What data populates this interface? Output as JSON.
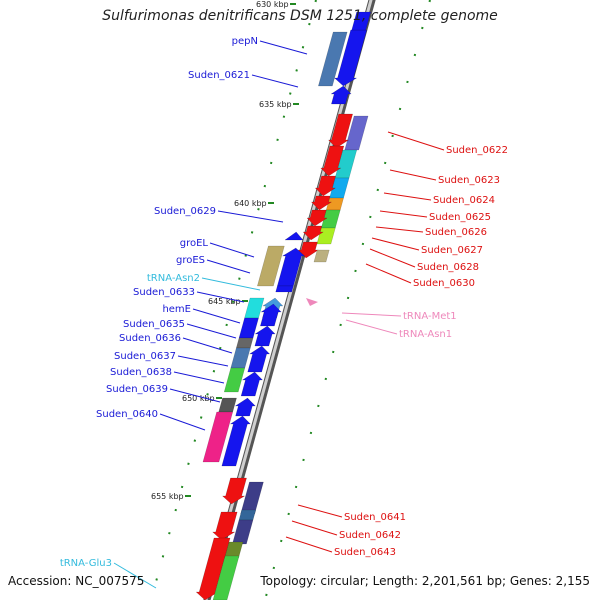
{
  "title": "Sulfurimonas denitrificans DSM 1251, complete genome",
  "accession": "Accession: NC_007575",
  "summary": "Topology: circular; Length: 2,201,561 bp; Genes: 2,155",
  "ticks": [
    "630 kbp",
    "635 kbp",
    "640 kbp",
    "645 kbp",
    "650 kbp",
    "655 kbp"
  ],
  "colors": {
    "label_blue": "#1a1ad6",
    "label_red": "#dd1111",
    "label_cyan": "#33bbdd",
    "label_pink": "#ee88bb",
    "backbone": "#888888",
    "tick_green": "#228822"
  },
  "labels_left": [
    {
      "text": "pepN",
      "color": "label_blue"
    },
    {
      "text": "Suden_0621",
      "color": "label_blue"
    },
    {
      "text": "Suden_0629",
      "color": "label_blue"
    },
    {
      "text": "groEL",
      "color": "label_blue"
    },
    {
      "text": "groES",
      "color": "label_blue"
    },
    {
      "text": "tRNA-Asn2",
      "color": "label_cyan"
    },
    {
      "text": "Suden_0633",
      "color": "label_blue"
    },
    {
      "text": "hemE",
      "color": "label_blue"
    },
    {
      "text": "Suden_0635",
      "color": "label_blue"
    },
    {
      "text": "Suden_0636",
      "color": "label_blue"
    },
    {
      "text": "Suden_0637",
      "color": "label_blue"
    },
    {
      "text": "Suden_0638",
      "color": "label_blue"
    },
    {
      "text": "Suden_0639",
      "color": "label_blue"
    },
    {
      "text": "Suden_0640",
      "color": "label_blue"
    },
    {
      "text": "tRNA-Glu3",
      "color": "label_cyan"
    }
  ],
  "labels_right": [
    {
      "text": "Suden_0622",
      "color": "label_red"
    },
    {
      "text": "Suden_0623",
      "color": "label_red"
    },
    {
      "text": "Suden_0624",
      "color": "label_red"
    },
    {
      "text": "Suden_0625",
      "color": "label_red"
    },
    {
      "text": "Suden_0626",
      "color": "label_red"
    },
    {
      "text": "Suden_0627",
      "color": "label_red"
    },
    {
      "text": "Suden_0628",
      "color": "label_red"
    },
    {
      "text": "Suden_0630",
      "color": "label_red"
    },
    {
      "text": "tRNA-Met1",
      "color": "label_pink"
    },
    {
      "text": "tRNA-Asn1",
      "color": "label_pink"
    },
    {
      "text": "Suden_0641",
      "color": "label_red"
    },
    {
      "text": "Suden_0642",
      "color": "label_red"
    },
    {
      "text": "Suden_0643",
      "color": "label_red"
    }
  ]
}
